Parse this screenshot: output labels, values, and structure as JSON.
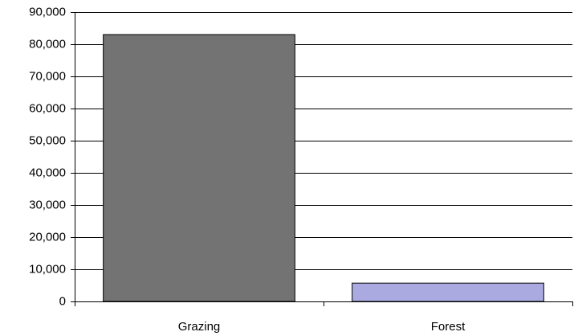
{
  "chart_data": {
    "type": "bar",
    "categories": [
      "Grazing",
      "Forest"
    ],
    "values": [
      83000,
      5700
    ],
    "colors": [
      "#737373",
      "#aaaae0"
    ],
    "ylim": [
      0,
      90000
    ],
    "yticks": [
      0,
      {
        "value": 10000,
        "label": "10,000"
      },
      {
        "value": 20000,
        "label": "20,000"
      },
      {
        "value": 30000,
        "label": "30,000"
      },
      {
        "value": 40000,
        "label": "40,000"
      },
      {
        "value": 50000,
        "label": "50,000"
      },
      {
        "value": 60000,
        "label": "60,000"
      },
      {
        "value": 70000,
        "label": "70,000"
      },
      {
        "value": 80000,
        "label": "80,000"
      },
      {
        "value": 90000,
        "label": "90,000"
      }
    ],
    "grid": true
  }
}
